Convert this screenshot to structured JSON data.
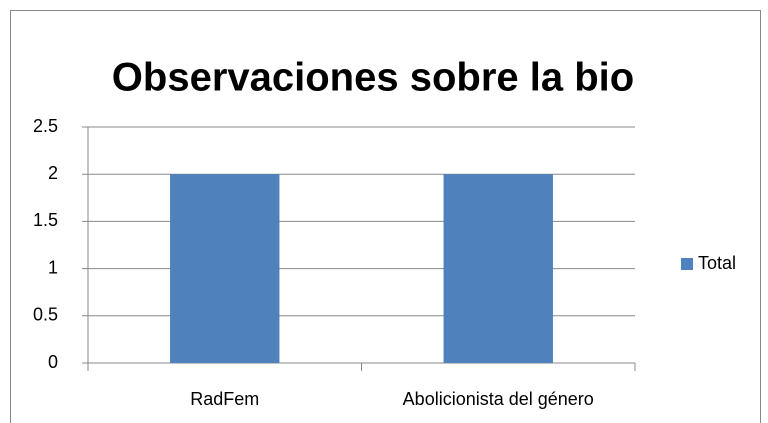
{
  "chart_data": {
    "type": "bar",
    "title": "Observaciones sobre la bio",
    "categories": [
      "RadFem",
      "Abolicionista del género"
    ],
    "series": [
      {
        "name": "Total",
        "color": "#4f81bd",
        "values": [
          2,
          2
        ]
      }
    ],
    "ylim": [
      0,
      2.5
    ],
    "yticks": [
      0,
      0.5,
      1,
      1.5,
      2,
      2.5
    ],
    "grid": true,
    "legend": "right"
  }
}
